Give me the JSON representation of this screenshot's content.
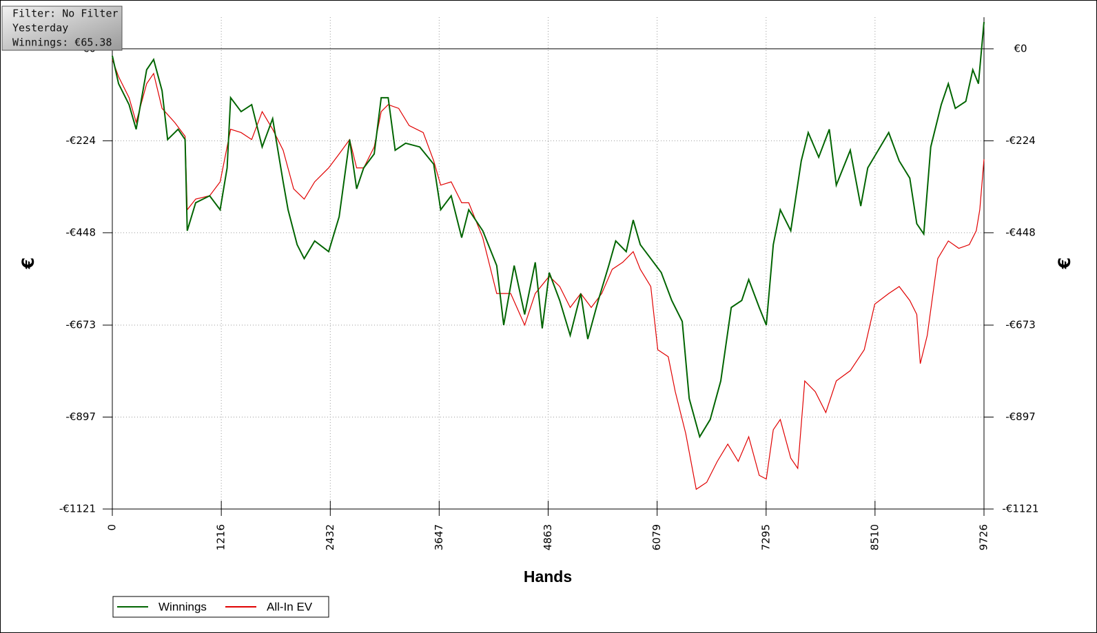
{
  "chart_data": {
    "type": "line",
    "annotations": [
      "Filter: No Filter",
      "Yesterday",
      "Winnings: €65.38"
    ],
    "x_label": "Hands",
    "y_label": "€",
    "xlim": [
      0,
      9726
    ],
    "xticks": [
      0,
      1216,
      2432,
      3647,
      4863,
      6079,
      7295,
      8510,
      9726
    ],
    "ylim": [
      -1121,
      77
    ],
    "yticks": [
      {
        "value": 0,
        "label": "€0"
      },
      {
        "value": -224,
        "label": "-€224"
      },
      {
        "value": -448,
        "label": "-€448"
      },
      {
        "value": -673,
        "label": "-€673"
      },
      {
        "value": -897,
        "label": "-€897"
      },
      {
        "value": -1121,
        "label": "-€1121"
      }
    ],
    "grid": true,
    "legend": "lower-left",
    "series": [
      {
        "name": "Winnings",
        "color": "#006400",
        "x": [
          0,
          70,
          187,
          266,
          383,
          461,
          555,
          617,
          734,
          812,
          836,
          930,
          1086,
          1203,
          1281,
          1320,
          1437,
          1555,
          1672,
          1789,
          1906,
          1961,
          2062,
          2141,
          2258,
          2414,
          2531,
          2648,
          2726,
          2805,
          2922,
          3000,
          3078,
          3156,
          3273,
          3430,
          3586,
          3664,
          3781,
          3898,
          3977,
          4133,
          4289,
          4367,
          4484,
          4601,
          4719,
          4797,
          4875,
          4992,
          5109,
          5227,
          5305,
          5422,
          5539,
          5617,
          5734,
          5812,
          5891,
          6008,
          6125,
          6242,
          6359,
          6437,
          6554,
          6671,
          6789,
          6906,
          7023,
          7101,
          7218,
          7297,
          7375,
          7453,
          7570,
          7687,
          7765,
          7882,
          8000,
          8078,
          8234,
          8351,
          8429,
          8546,
          8663,
          8780,
          8898,
          8976,
          9054,
          9132,
          9249,
          9328,
          9406,
          9523,
          9601,
          9664,
          9726
        ],
        "values": [
          -17,
          -85,
          -136,
          -196,
          -51,
          -26,
          -102,
          -221,
          -196,
          -221,
          -443,
          -375,
          -358,
          -392,
          -290,
          -119,
          -153,
          -136,
          -239,
          -170,
          -324,
          -392,
          -477,
          -511,
          -468,
          -494,
          -409,
          -221,
          -341,
          -290,
          -256,
          -119,
          -119,
          -247,
          -230,
          -239,
          -281,
          -392,
          -358,
          -460,
          -392,
          -443,
          -528,
          -673,
          -528,
          -647,
          -520,
          -681,
          -545,
          -613,
          -698,
          -596,
          -707,
          -613,
          -528,
          -468,
          -494,
          -417,
          -477,
          -511,
          -545,
          -613,
          -664,
          -852,
          -945,
          -903,
          -809,
          -630,
          -613,
          -562,
          -630,
          -673,
          -477,
          -392,
          -443,
          -273,
          -204,
          -264,
          -196,
          -332,
          -247,
          -383,
          -290,
          -247,
          -204,
          -273,
          -315,
          -426,
          -451,
          -239,
          -136,
          -85,
          -145,
          -128,
          -51,
          -85,
          65.38
        ]
      },
      {
        "name": "All-In EV",
        "color": "#e00000",
        "x": [
          0,
          70,
          187,
          266,
          383,
          461,
          555,
          695,
          812,
          836,
          930,
          1086,
          1203,
          1320,
          1437,
          1555,
          1672,
          1789,
          1906,
          2023,
          2141,
          2258,
          2414,
          2531,
          2648,
          2726,
          2805,
          2922,
          3000,
          3078,
          3195,
          3312,
          3469,
          3586,
          3664,
          3781,
          3898,
          3977,
          4133,
          4289,
          4445,
          4601,
          4719,
          4875,
          4992,
          5109,
          5227,
          5344,
          5461,
          5578,
          5695,
          5812,
          5891,
          6008,
          6086,
          6203,
          6281,
          6398,
          6515,
          6632,
          6750,
          6867,
          6984,
          7101,
          7218,
          7297,
          7375,
          7453,
          7570,
          7648,
          7726,
          7843,
          7961,
          8078,
          8234,
          8390,
          8507,
          8663,
          8780,
          8898,
          8976,
          9015,
          9093,
          9210,
          9328,
          9445,
          9562,
          9640,
          9679,
          9726
        ],
        "values": [
          -26,
          -68,
          -119,
          -179,
          -85,
          -60,
          -145,
          -179,
          -213,
          -392,
          -366,
          -358,
          -324,
          -196,
          -204,
          -221,
          -153,
          -196,
          -247,
          -341,
          -366,
          -324,
          -290,
          -256,
          -221,
          -290,
          -290,
          -239,
          -153,
          -136,
          -145,
          -187,
          -204,
          -273,
          -332,
          -324,
          -375,
          -375,
          -460,
          -596,
          -596,
          -673,
          -596,
          -554,
          -579,
          -630,
          -596,
          -630,
          -596,
          -537,
          -520,
          -494,
          -537,
          -579,
          -733,
          -750,
          -835,
          -937,
          -1073,
          -1056,
          -1005,
          -963,
          -1005,
          -945,
          -1039,
          -1048,
          -928,
          -903,
          -997,
          -1022,
          -809,
          -835,
          -886,
          -809,
          -784,
          -733,
          -622,
          -596,
          -579,
          -613,
          -647,
          -767,
          -698,
          -511,
          -468,
          -486,
          -477,
          -443,
          -392,
          -269
        ]
      }
    ]
  }
}
